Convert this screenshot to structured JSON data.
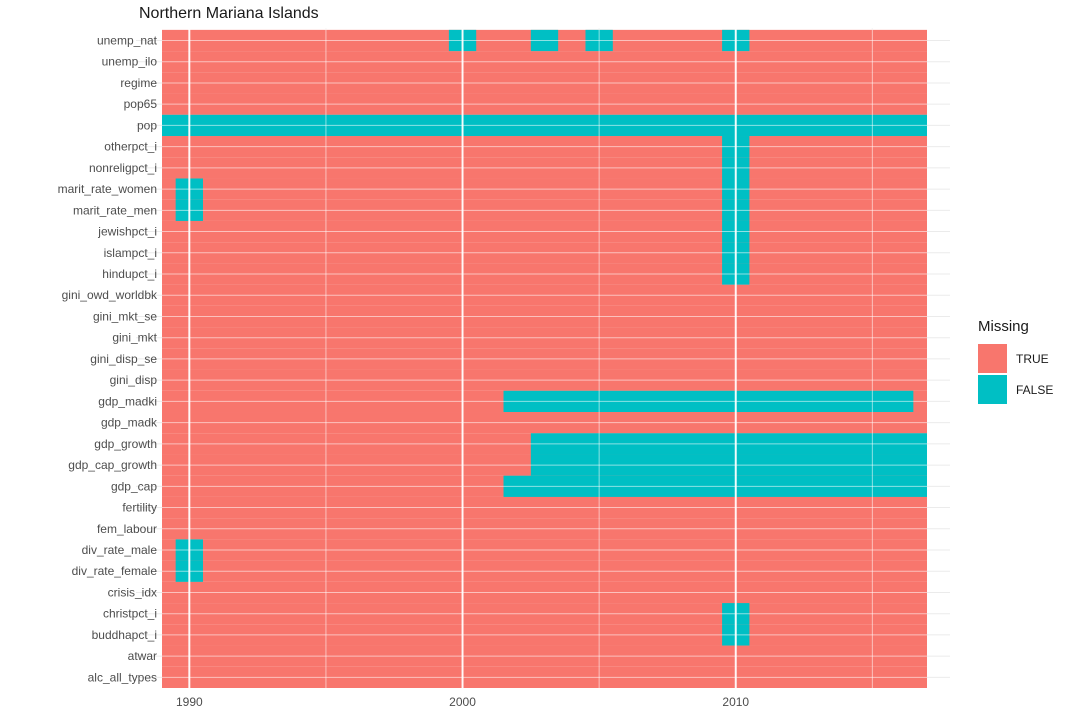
{
  "chart_data": {
    "type": "heatmap",
    "title": "Northern Mariana Islands",
    "xlabel": "",
    "ylabel": "",
    "x_range": [
      1989,
      2017
    ],
    "x_ticks": [
      1990,
      2000,
      2010
    ],
    "grid": true,
    "legend": {
      "title": "Missing",
      "position": "right",
      "entries": [
        {
          "label": "TRUE",
          "color": "#F8766D"
        },
        {
          "label": "FALSE",
          "color": "#00BFC4"
        }
      ]
    },
    "variables": [
      "alc_all_types",
      "atwar",
      "buddhapct_i",
      "christpct_i",
      "crisis_idx",
      "div_rate_female",
      "div_rate_male",
      "fem_labour",
      "fertility",
      "gdp_cap",
      "gdp_cap_growth",
      "gdp_growth",
      "gdp_madk",
      "gdp_madki",
      "gini_disp",
      "gini_disp_se",
      "gini_mkt",
      "gini_mkt_se",
      "gini_owd_worldbk",
      "hindupct_i",
      "islampct_i",
      "jewishpct_i",
      "marit_rate_men",
      "marit_rate_women",
      "nonreligpct_i",
      "otherpct_i",
      "pop",
      "pop65",
      "regime",
      "unemp_ilo",
      "unemp_nat"
    ],
    "not_missing": [
      {
        "variable": "unemp_nat",
        "years": [
          2000,
          2003,
          2005,
          2010
        ]
      },
      {
        "variable": "pop",
        "year_range": [
          1989,
          2017
        ]
      },
      {
        "variable": "otherpct_i",
        "years": [
          2010
        ]
      },
      {
        "variable": "nonreligpct_i",
        "years": [
          2010
        ]
      },
      {
        "variable": "marit_rate_women",
        "years": [
          1990,
          2010
        ]
      },
      {
        "variable": "marit_rate_men",
        "years": [
          1990,
          2010
        ]
      },
      {
        "variable": "jewishpct_i",
        "years": [
          2010
        ]
      },
      {
        "variable": "islampct_i",
        "years": [
          2010
        ]
      },
      {
        "variable": "hindupct_i",
        "years": [
          2010
        ]
      },
      {
        "variable": "gdp_madki",
        "year_range": [
          2002,
          2016
        ]
      },
      {
        "variable": "gdp_growth",
        "year_range": [
          2003,
          2017
        ]
      },
      {
        "variable": "gdp_cap_growth",
        "year_range": [
          2003,
          2017
        ]
      },
      {
        "variable": "gdp_cap",
        "year_range": [
          2002,
          2017
        ]
      },
      {
        "variable": "div_rate_male",
        "years": [
          1990
        ]
      },
      {
        "variable": "div_rate_female",
        "years": [
          1990
        ]
      },
      {
        "variable": "christpct_i",
        "years": [
          2010
        ]
      },
      {
        "variable": "buddhapct_i",
        "years": [
          2010
        ]
      }
    ]
  }
}
